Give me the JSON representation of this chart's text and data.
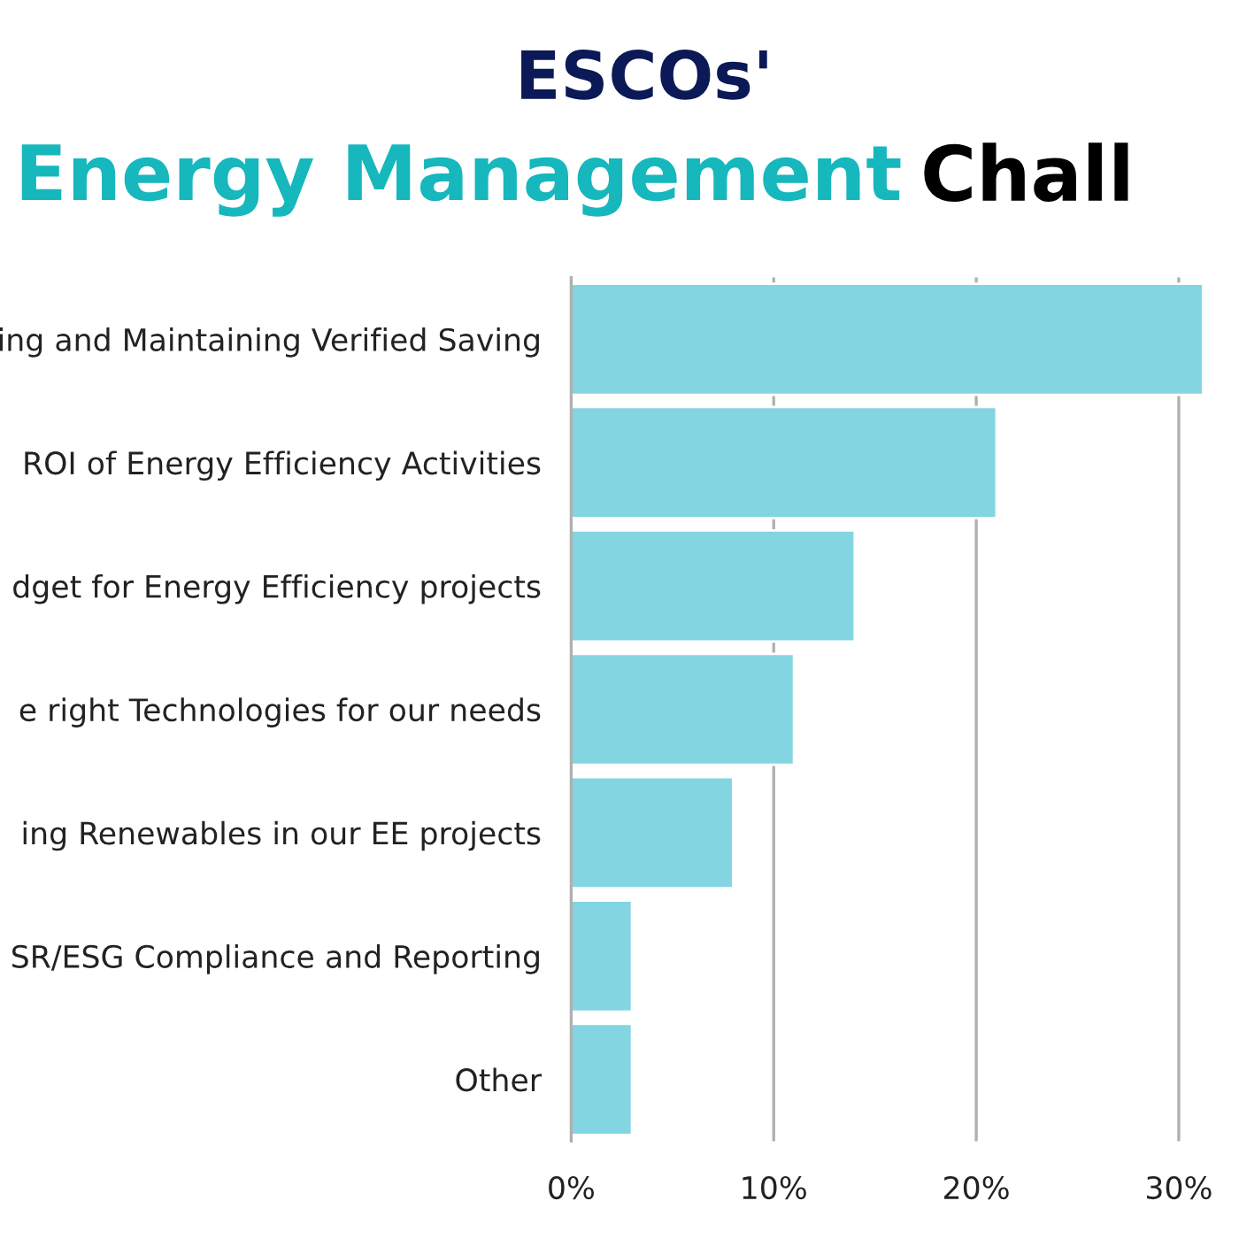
{
  "chart_data": {
    "type": "bar",
    "orientation": "horizontal",
    "title": "ESCOs'",
    "subtitle": "Energy Management Chall",
    "categories": [
      "ing and Maintaining Verified Saving",
      "ROI of Energy Efficiency Activities",
      "dget for Energy Efficiency projects",
      "e right Technologies for our needs",
      "ing Renewables in our EE projects",
      "SR/ESG Compliance and Reporting",
      "Other"
    ],
    "values": [
      31.2,
      21,
      14,
      11,
      8,
      3,
      3
    ],
    "color": "#82d5e1",
    "xlim": [
      0,
      31.2
    ],
    "xticks": [
      {
        "value": 0,
        "label": "0%"
      },
      {
        "value": 10,
        "label": "10%"
      },
      {
        "value": 20,
        "label": "20%"
      },
      {
        "value": 30,
        "label": "30%"
      }
    ],
    "grid": "x",
    "legend": false
  }
}
